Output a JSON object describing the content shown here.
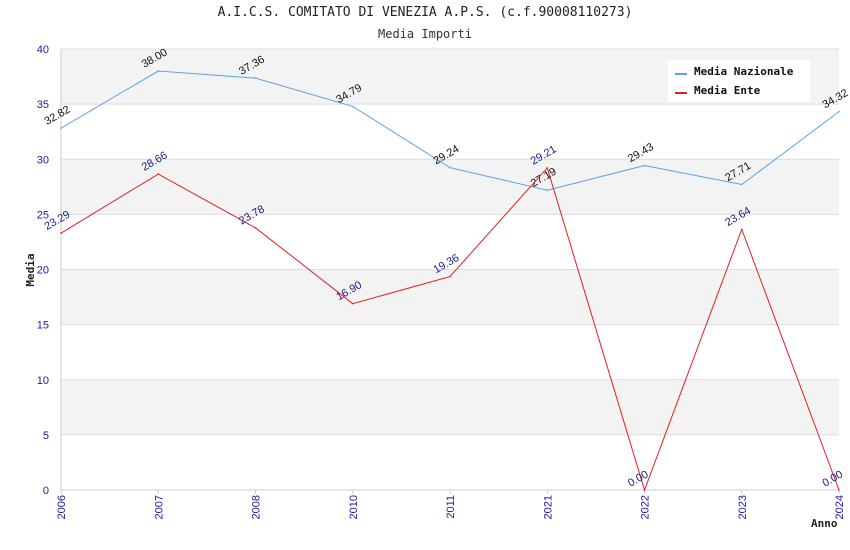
{
  "chart_data": {
    "type": "line",
    "title": "A.I.C.S. COMITATO DI VENEZIA A.P.S. (c.f.90008110273)",
    "subtitle": "Media Importi",
    "xlabel": "Anno",
    "ylabel": "Media",
    "categories": [
      "2006",
      "2007",
      "2008",
      "2010",
      "2011",
      "2021",
      "2022",
      "2023",
      "2024"
    ],
    "ylim": [
      0,
      40
    ],
    "yticks": [
      0,
      5,
      10,
      15,
      20,
      25,
      30,
      35,
      40
    ],
    "grid": true,
    "legend_position": "top-right",
    "series": [
      {
        "name": "Media Nazionale",
        "color": "#5ba3e6",
        "values": [
          32.82,
          38.0,
          37.36,
          34.79,
          29.24,
          27.19,
          29.43,
          27.71,
          34.32
        ],
        "labels": [
          "32.82",
          "38.00",
          "37.36",
          "34.79",
          "29.24",
          "27.19",
          "29.43",
          "27.71",
          "34.32"
        ]
      },
      {
        "name": "Media Ente",
        "color": "#e02020",
        "values": [
          23.29,
          28.66,
          23.78,
          16.9,
          19.36,
          29.21,
          0.0,
          23.64,
          0.0
        ],
        "labels": [
          "23.29",
          "28.66",
          "23.78",
          "16.90",
          "19.36",
          "29.21",
          "0.00",
          "23.64",
          "0.00"
        ]
      }
    ]
  }
}
